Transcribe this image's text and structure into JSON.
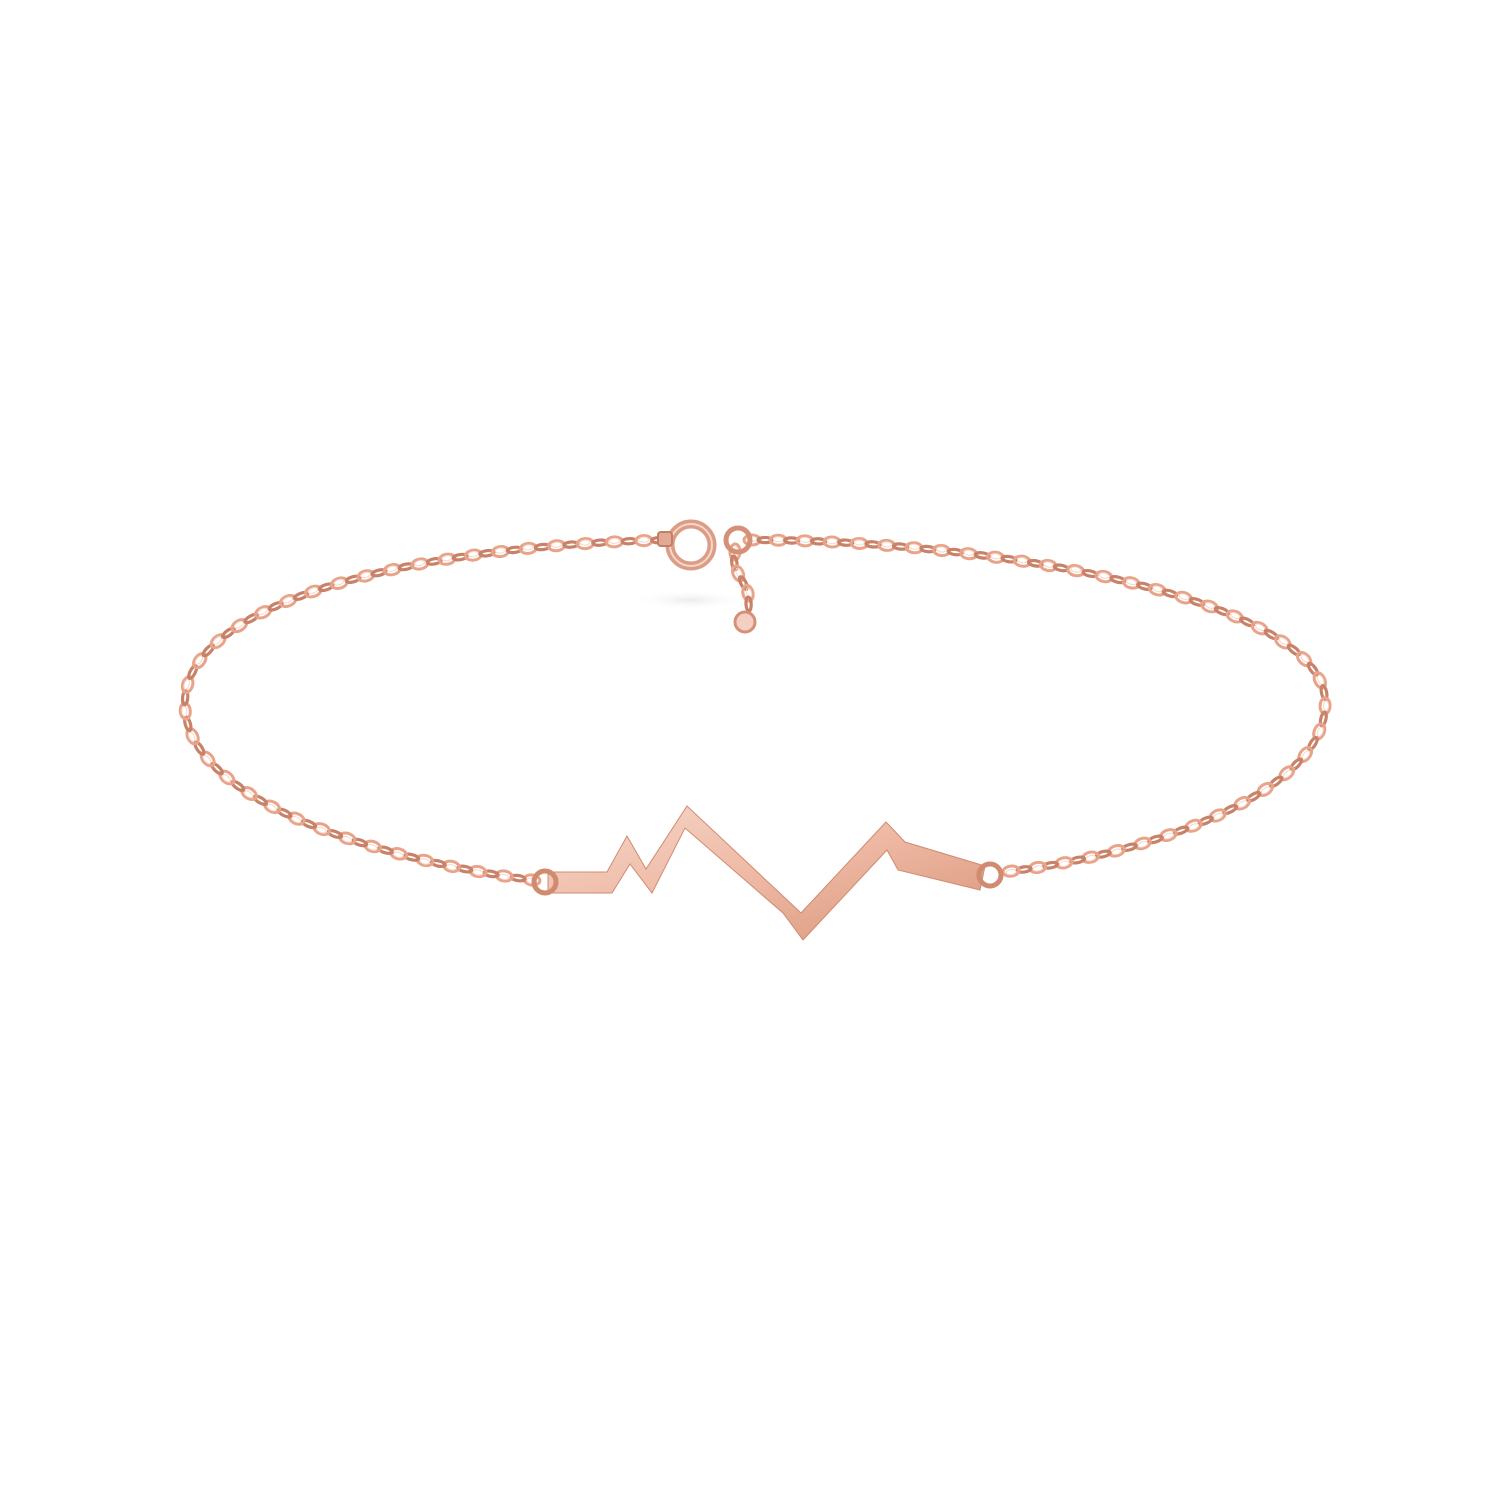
{
  "photo": {
    "subject": "bracelet",
    "background_color": "#ffffff",
    "metal_color": "#e8a48a",
    "metal_dark": "#c9826a",
    "metal_light": "#f6d7c9",
    "pendant_color": "#f0c5b3",
    "icons": [
      "chain-icon",
      "heartbeat-pendant-icon",
      "spring-ring-clasp-icon"
    ]
  }
}
